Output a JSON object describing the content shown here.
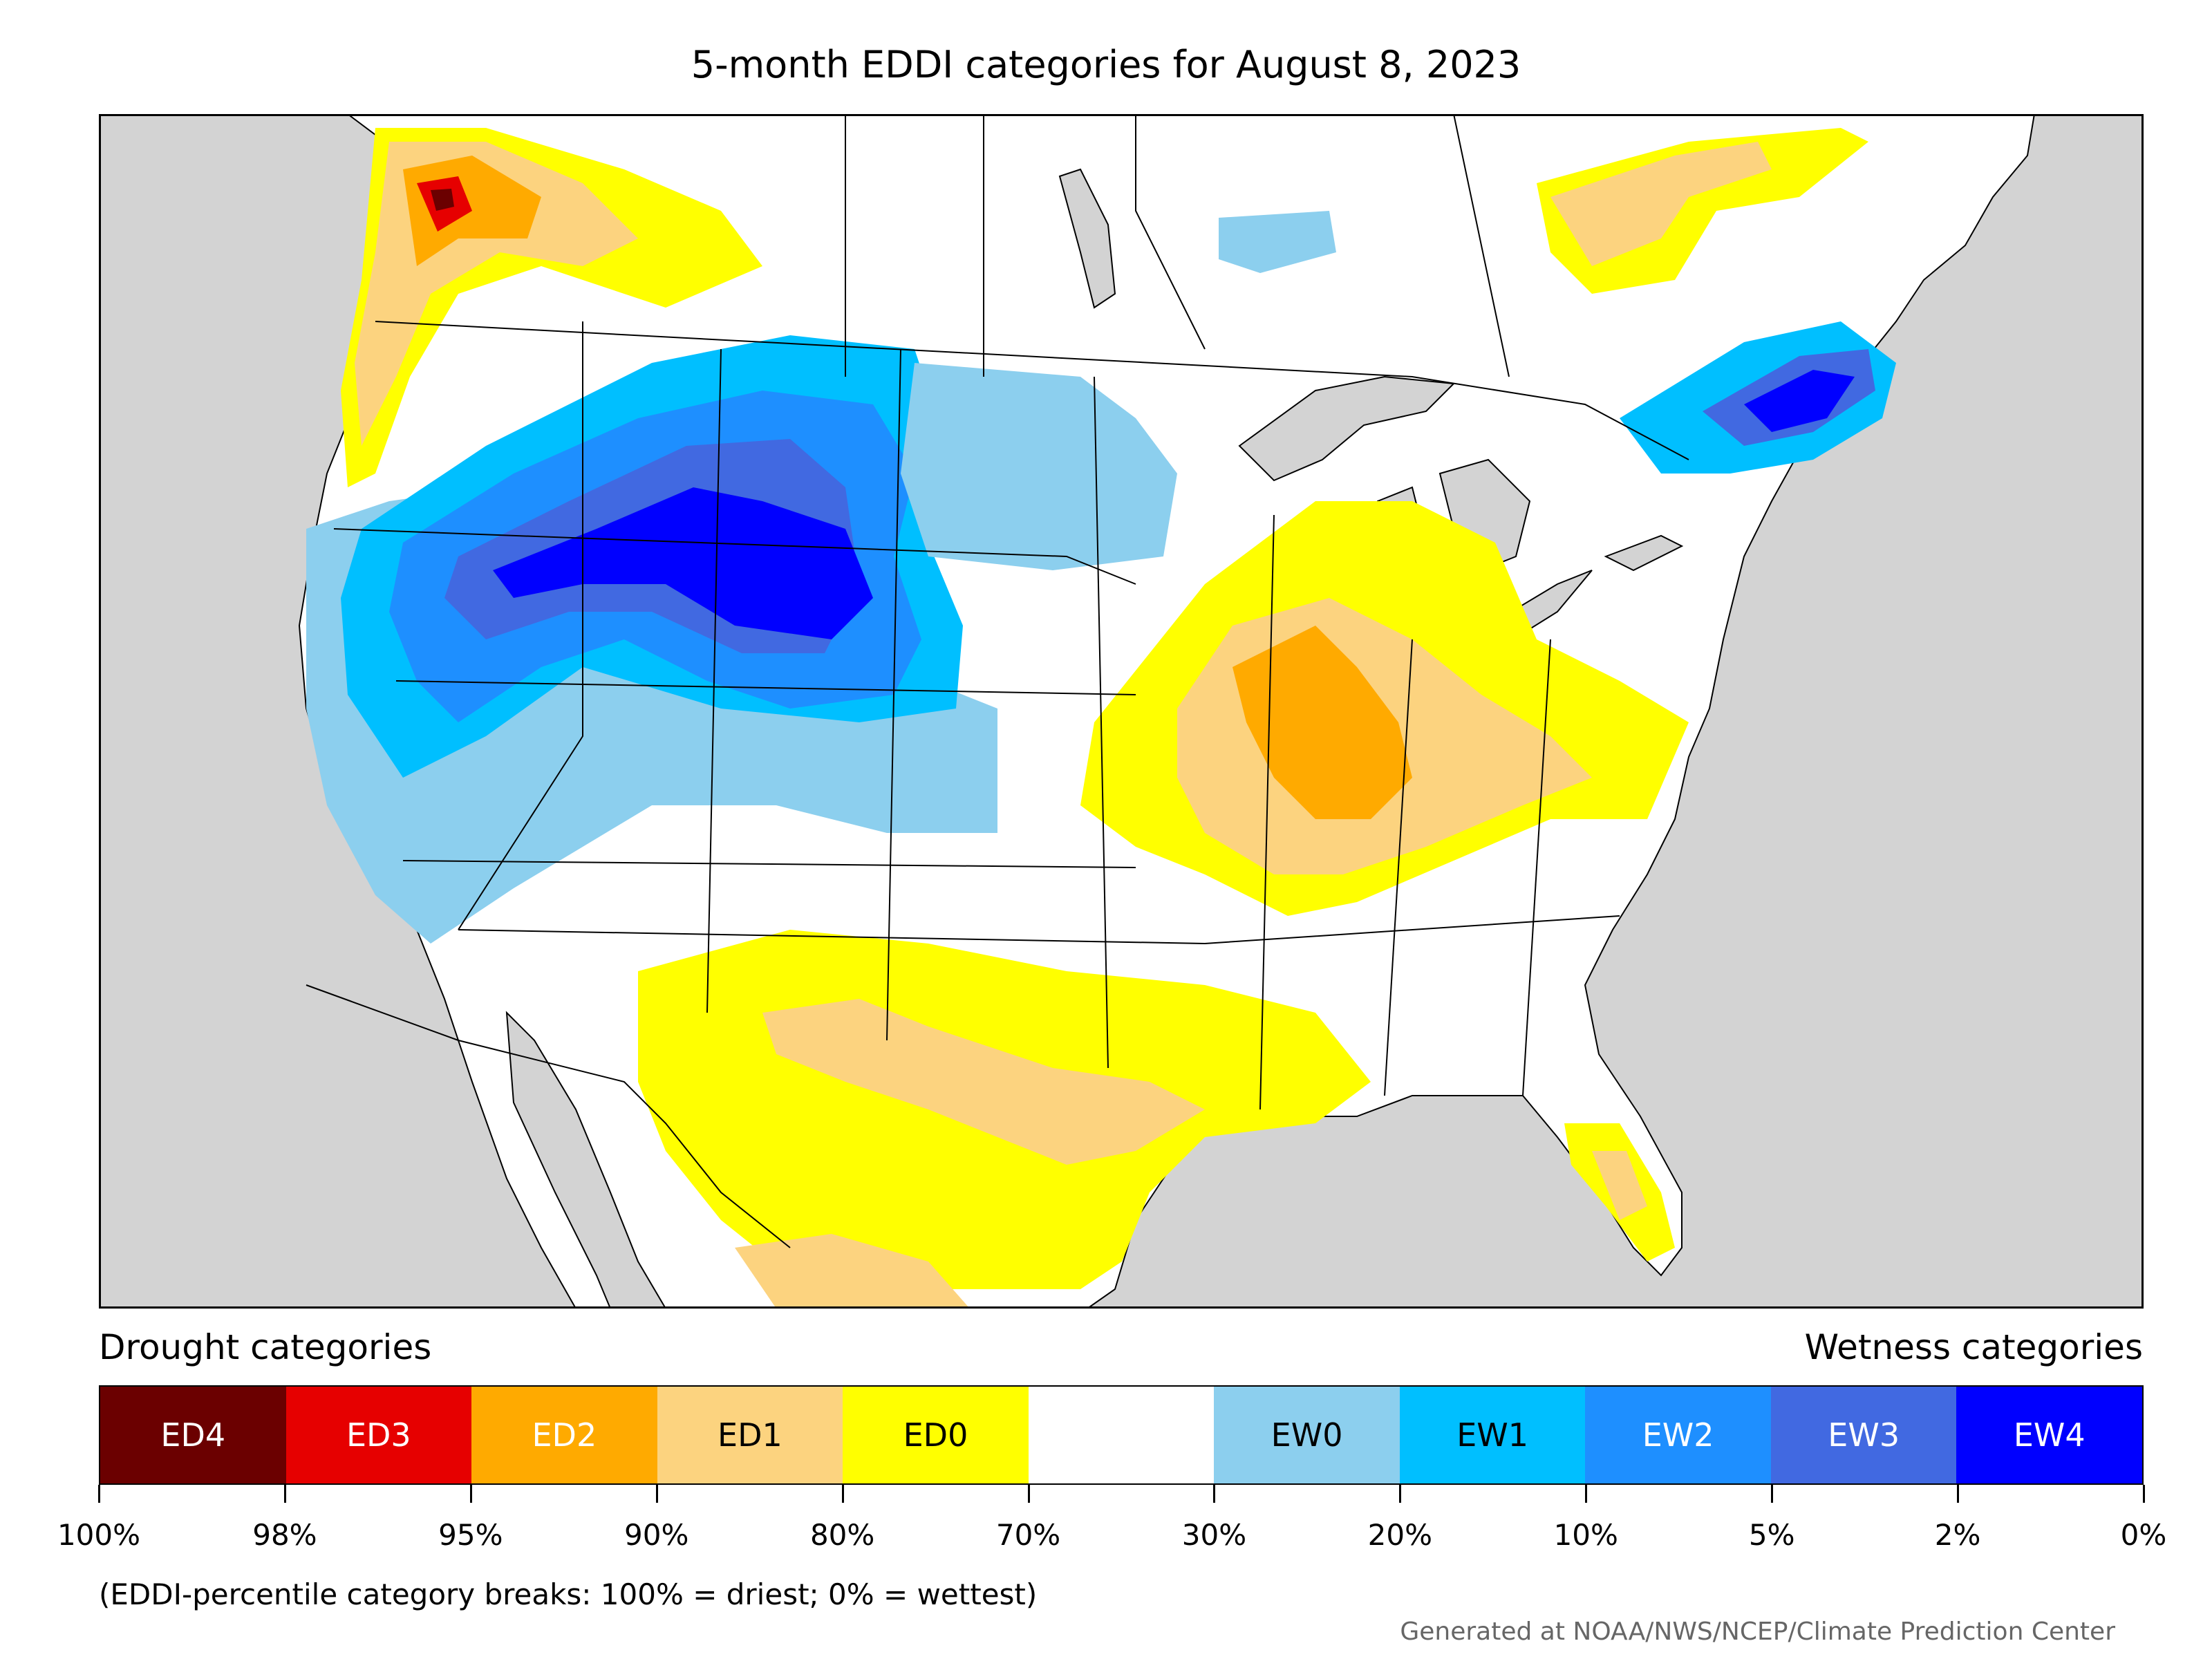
{
  "title": "5-month EDDI categories for August 8, 2023",
  "legend": {
    "drought_heading": "Drought categories",
    "wetness_heading": "Wetness categories",
    "categories": [
      {
        "label": "ED4",
        "color": "#6b0000",
        "text_color": "#ffffff"
      },
      {
        "label": "ED3",
        "color": "#e60000",
        "text_color": "#ffffff"
      },
      {
        "label": "ED2",
        "color": "#ffaa00",
        "text_color": "#ffffff"
      },
      {
        "label": "ED1",
        "color": "#fcd37f",
        "text_color": "#000000"
      },
      {
        "label": "ED0",
        "color": "#ffff00",
        "text_color": "#000000"
      },
      {
        "label": "",
        "color": "#ffffff",
        "text_color": "#000000"
      },
      {
        "label": "EW0",
        "color": "#8ccfee",
        "text_color": "#000000"
      },
      {
        "label": "EW1",
        "color": "#00bfff",
        "text_color": "#000000"
      },
      {
        "label": "EW2",
        "color": "#1e8fff",
        "text_color": "#ffffff"
      },
      {
        "label": "EW3",
        "color": "#4169e1",
        "text_color": "#ffffff"
      },
      {
        "label": "EW4",
        "color": "#0000ff",
        "text_color": "#ffffff"
      }
    ],
    "breaks": [
      "100%",
      "98%",
      "95%",
      "90%",
      "80%",
      "70%",
      "30%",
      "20%",
      "10%",
      "5%",
      "2%",
      "0%"
    ]
  },
  "footnote": "(EDDI-percentile category breaks: 100% = driest; 0% = wettest)",
  "credit": "Generated at NOAA/NWS/NCEP/Climate Prediction Center",
  "colors": {
    "ocean": "#d3d3d3",
    "land": "#ffffff",
    "border": "#000000"
  }
}
